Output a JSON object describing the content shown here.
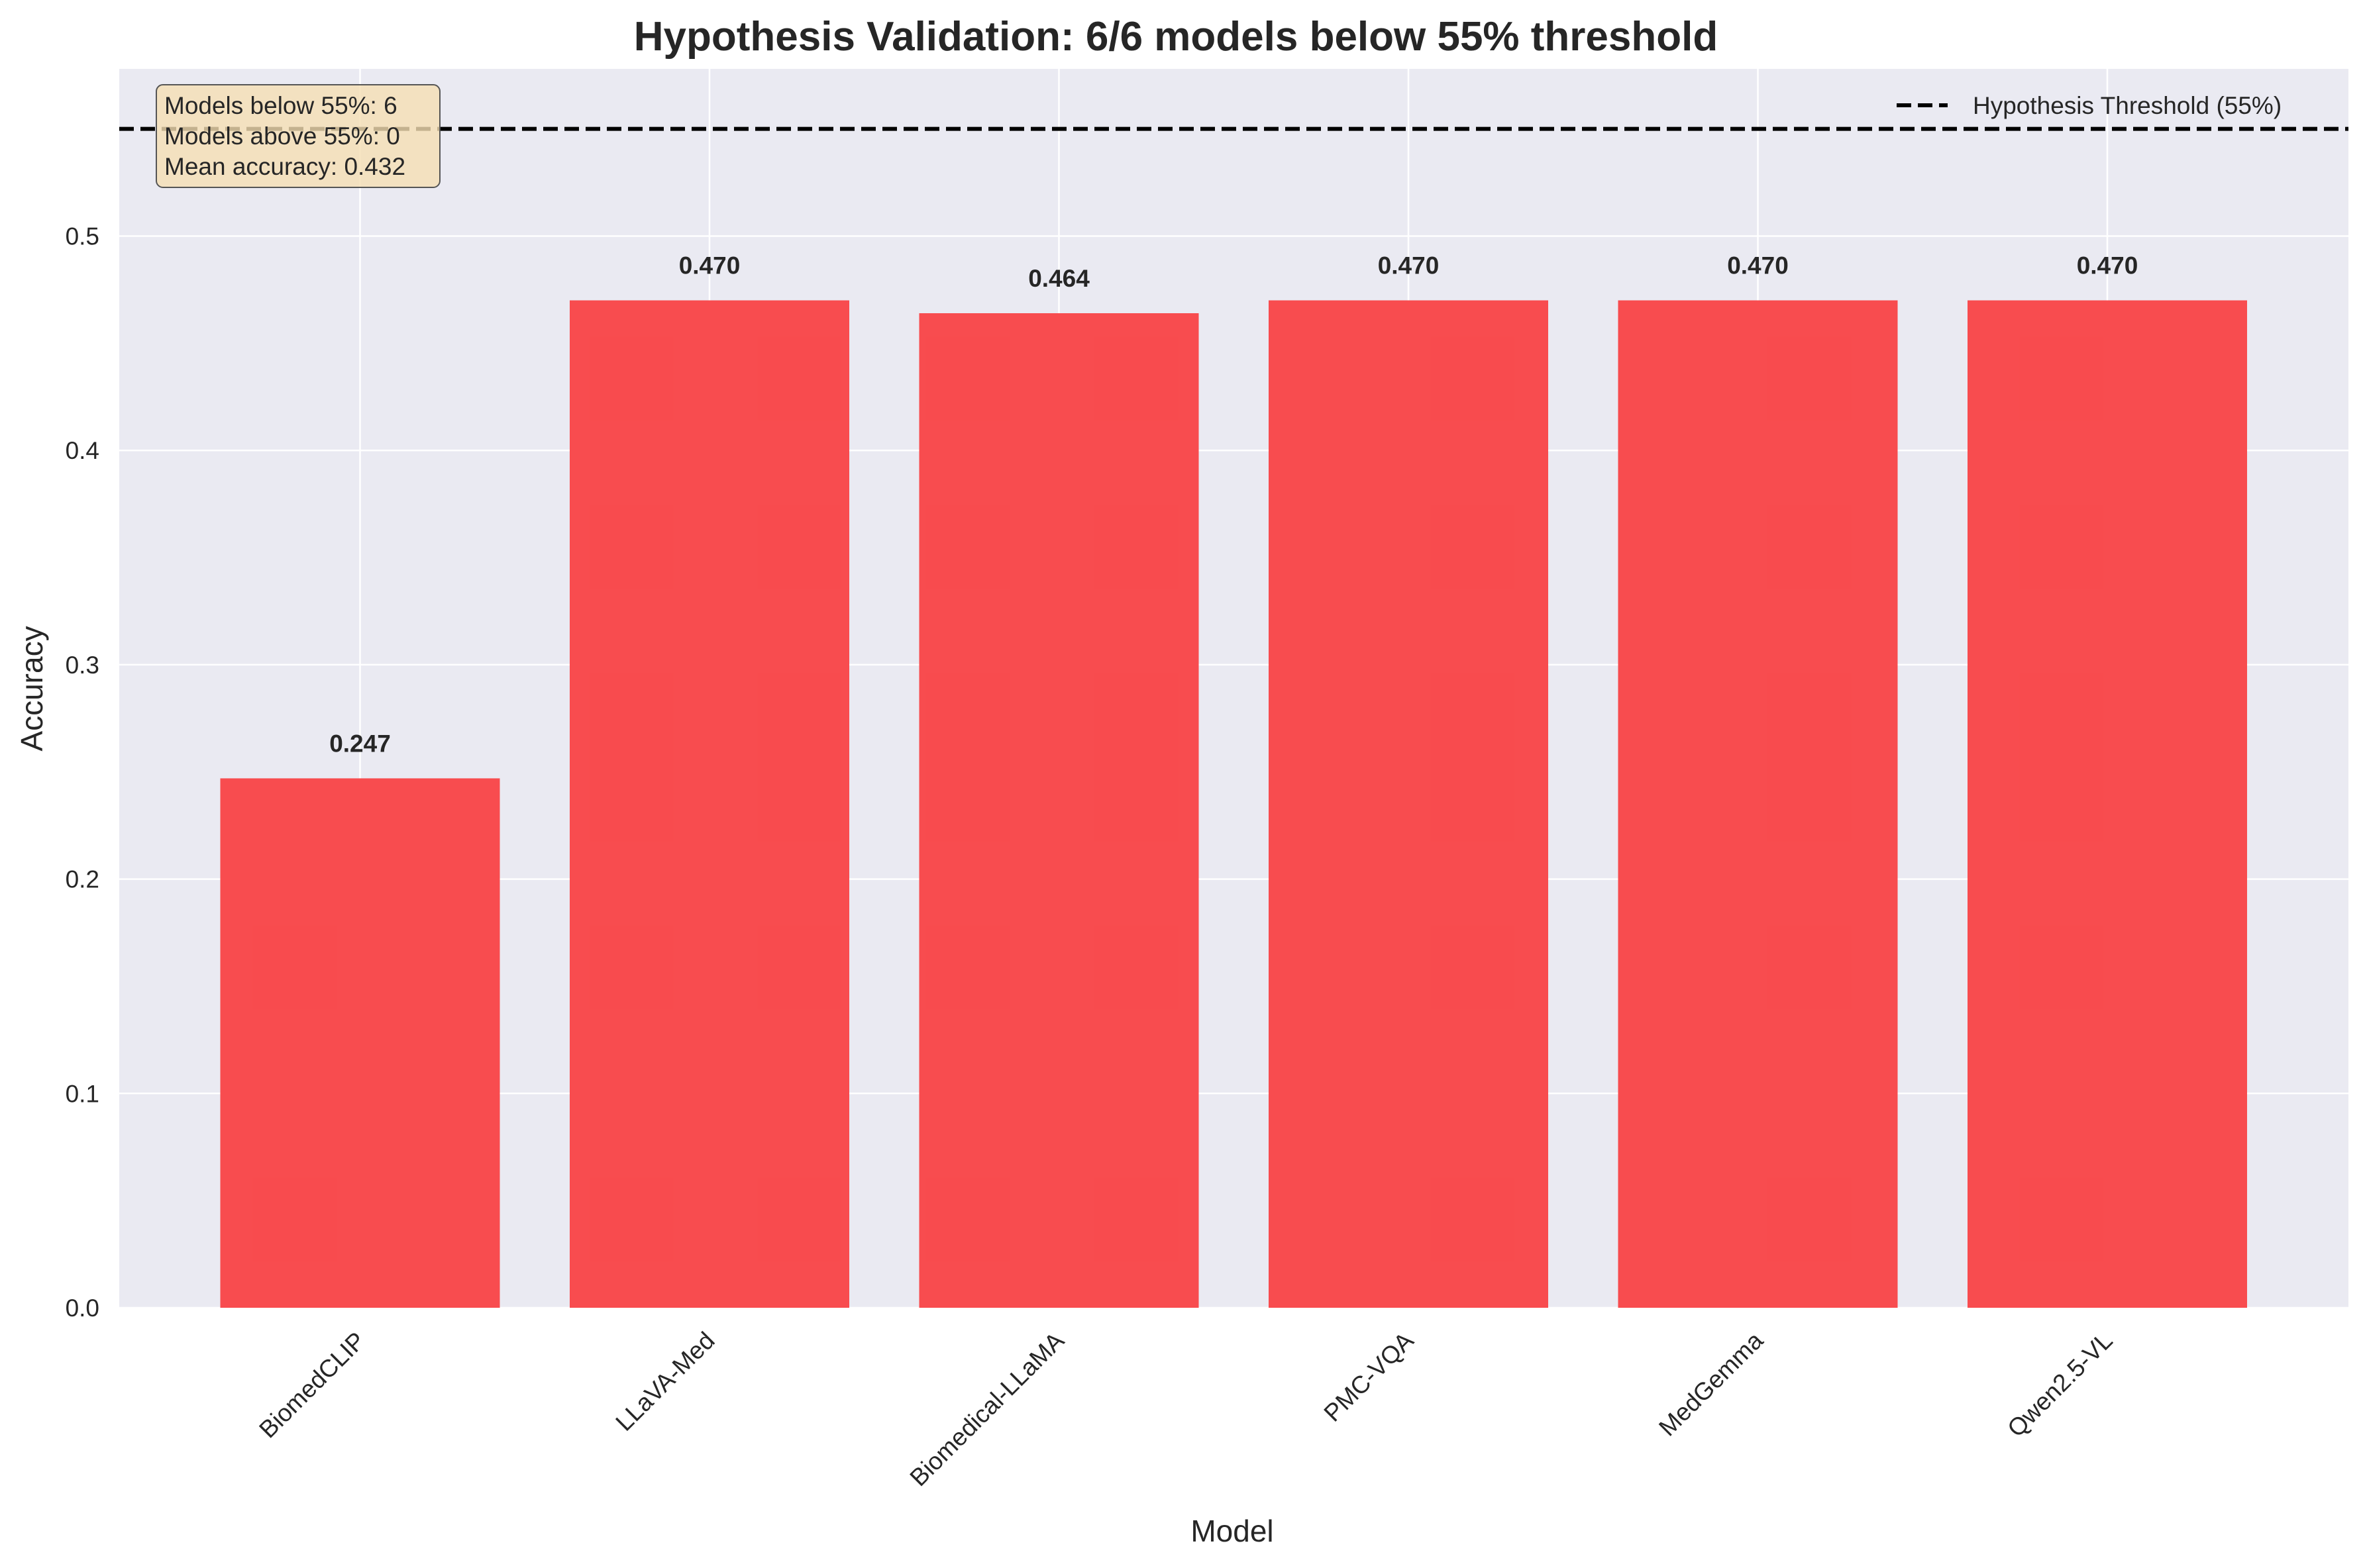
{
  "chart_data": {
    "type": "bar",
    "title": "Hypothesis Validation: 6/6 models below 55% threshold",
    "xlabel": "Model",
    "ylabel": "Accuracy",
    "categories": [
      "BiomedCLIP",
      "LLaVA-Med",
      "Biomedical-LLaMA",
      "PMC-VQA",
      "MedGemma",
      "Qwen2.5-VL"
    ],
    "values": [
      0.247,
      0.47,
      0.464,
      0.47,
      0.47,
      0.47
    ],
    "value_labels": [
      "0.247",
      "0.470",
      "0.464",
      "0.470",
      "0.470",
      "0.470"
    ],
    "ylim": [
      0,
      0.578
    ],
    "yticks": [
      0.0,
      0.1,
      0.2,
      0.3,
      0.4,
      0.5
    ],
    "ytick_labels": [
      "0.0",
      "0.1",
      "0.2",
      "0.3",
      "0.4",
      "0.5"
    ],
    "bar_color": "#f8484b",
    "background_color": "#eaeaf2",
    "grid": true,
    "threshold": {
      "value": 0.55,
      "style": "dashed",
      "color": "#000000",
      "legend_label": "Hypothesis Threshold (55%)"
    },
    "legend_position": "top-right",
    "stats_box": {
      "position": "top-left",
      "background": "#f5deb3",
      "lines": [
        "Models below 55%: 6",
        "Models above 55%: 0",
        "Mean accuracy: 0.432"
      ]
    }
  }
}
